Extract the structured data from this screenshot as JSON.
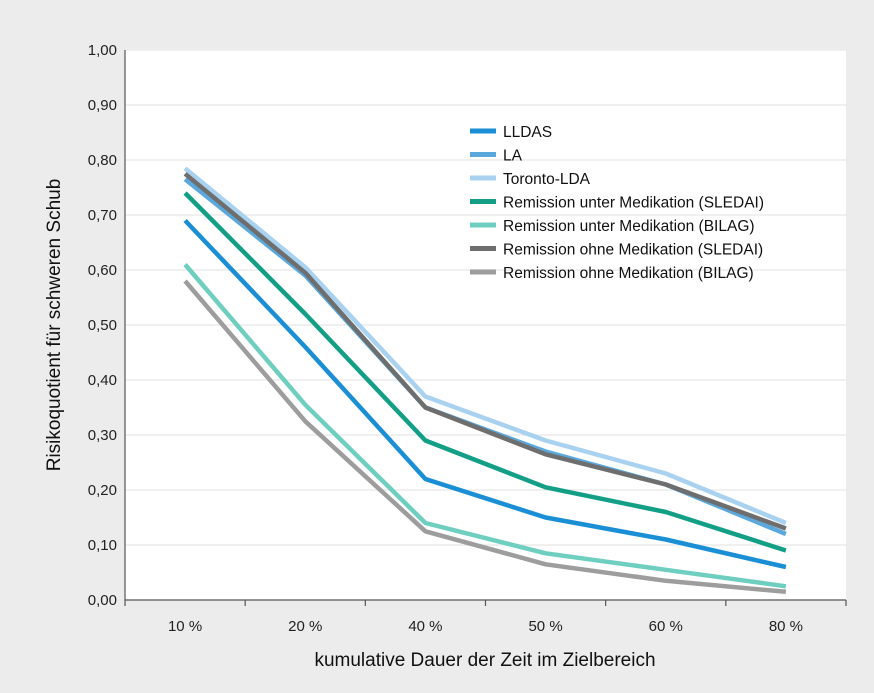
{
  "chart_data": {
    "type": "line",
    "xlabel": "kumulative Dauer der Zeit im Zielbereich",
    "ylabel": "Risikoquotient für schweren Schub",
    "categories": [
      "10 %",
      "20 %",
      "40 %",
      "50 %",
      "60 %",
      "80 %"
    ],
    "y_ticks": [
      "0,00",
      "0,10",
      "0,20",
      "0,30",
      "0,40",
      "0,50",
      "0,60",
      "0,70",
      "0,80",
      "0,90",
      "1,00"
    ],
    "ylim": [
      0,
      1.0
    ],
    "grid": true,
    "legend_position": "top-right inside plot",
    "series": [
      {
        "name": "LLDAS",
        "color": "#1a8fd6",
        "values": [
          0.69,
          0.46,
          0.22,
          0.15,
          0.11,
          0.06
        ]
      },
      {
        "name": "LA",
        "color": "#5aa8dc",
        "values": [
          0.765,
          0.59,
          0.35,
          0.27,
          0.21,
          0.12
        ]
      },
      {
        "name": "Toronto-LDA",
        "color": "#a9d2f0",
        "values": [
          0.785,
          0.605,
          0.37,
          0.29,
          0.23,
          0.14
        ]
      },
      {
        "name": "Remission unter Medikation (SLEDAI)",
        "color": "#139f86",
        "values": [
          0.74,
          0.52,
          0.29,
          0.205,
          0.16,
          0.09
        ]
      },
      {
        "name": "Remission unter Medikation (BILAG)",
        "color": "#6ecfc0",
        "values": [
          0.61,
          0.355,
          0.14,
          0.085,
          0.055,
          0.025
        ]
      },
      {
        "name": "Remission ohne Medikation (SLEDAI)",
        "color": "#6e6e6e",
        "values": [
          0.775,
          0.595,
          0.35,
          0.265,
          0.21,
          0.13
        ]
      },
      {
        "name": "Remission ohne Medikation (BILAG)",
        "color": "#9d9d9d",
        "values": [
          0.58,
          0.325,
          0.125,
          0.065,
          0.035,
          0.015
        ]
      }
    ],
    "colors": {
      "panel_background": "#ececec",
      "plot_background": "#ffffff",
      "gridline": "#ececec",
      "axis": "#555555"
    }
  }
}
